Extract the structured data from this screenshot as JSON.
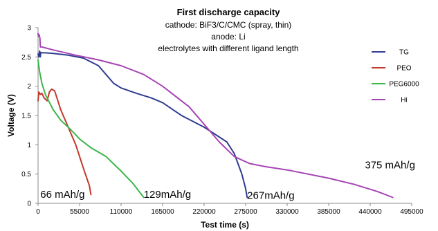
{
  "chart_data": {
    "type": "line",
    "title": "First discharge capacity",
    "subtitle_lines": [
      "cathode: BiF3/C/CMC (spray, thin)",
      "anode: Li",
      "electrolytes with different ligand length"
    ],
    "xlabel": "Test time (s)",
    "ylabel": "Voltage (V)",
    "xlim": [
      0,
      495000
    ],
    "ylim": [
      0,
      3
    ],
    "x_ticks": [
      0,
      55000,
      110000,
      165000,
      220000,
      275000,
      330000,
      385000,
      440000,
      495000
    ],
    "y_ticks": [
      0,
      0.5,
      1,
      1.5,
      2,
      2.5,
      3
    ],
    "x_tick_labels": [
      "0",
      "55000",
      "110000",
      "165000",
      "220000",
      "275000",
      "330000",
      "385000",
      "440000",
      "495000"
    ],
    "y_tick_labels": [
      "0",
      "0.5",
      "1",
      "1.5",
      "2",
      "2.5",
      "3"
    ],
    "legend_position": "right",
    "grid": false,
    "series": [
      {
        "name": "TG",
        "color": "#2e3c8f",
        "x": [
          0,
          1000,
          2000,
          3000,
          3500,
          5000,
          10000,
          20000,
          40000,
          60000,
          80000,
          90000,
          100000,
          110000,
          130000,
          150000,
          165000,
          190000,
          220000,
          250000,
          260000,
          270000,
          275000,
          277000
        ],
        "y": [
          2.55,
          2.5,
          2.6,
          2.5,
          2.58,
          2.57,
          2.57,
          2.56,
          2.53,
          2.48,
          2.35,
          2.2,
          2.05,
          1.97,
          1.88,
          1.8,
          1.72,
          1.5,
          1.3,
          1.05,
          0.85,
          0.5,
          0.25,
          0.1
        ]
      },
      {
        "name": "PEO",
        "color": "#c0392b",
        "x": [
          0,
          1000,
          3000,
          5000,
          8000,
          12000,
          15000,
          18000,
          22000,
          25000,
          30000,
          40000,
          50000,
          60000,
          68000,
          70000
        ],
        "y": [
          1.75,
          1.9,
          1.86,
          1.88,
          1.8,
          1.75,
          1.9,
          1.95,
          1.92,
          1.8,
          1.6,
          1.3,
          1.0,
          0.6,
          0.3,
          0.15
        ]
      },
      {
        "name": "PEG6000",
        "color": "#3cb64a",
        "x": [
          0,
          2000,
          5000,
          10000,
          20000,
          30000,
          40000,
          50000,
          55000,
          70000,
          90000,
          110000,
          125000,
          140000
        ],
        "y": [
          2.45,
          2.25,
          2.05,
          1.85,
          1.6,
          1.42,
          1.3,
          1.17,
          1.1,
          0.95,
          0.8,
          0.55,
          0.35,
          0.1
        ]
      },
      {
        "name": "Hi",
        "color": "#a644b5",
        "x": [
          0,
          500,
          1500,
          2500,
          3000,
          5000,
          20000,
          50000,
          80000,
          110000,
          140000,
          165000,
          200000,
          240000,
          260000,
          280000,
          300000,
          330000,
          385000,
          420000,
          450000,
          470000
        ],
        "y": [
          2.9,
          2.85,
          2.88,
          2.82,
          2.67,
          2.67,
          2.62,
          2.53,
          2.45,
          2.35,
          2.2,
          2.0,
          1.65,
          1.05,
          0.8,
          0.68,
          0.63,
          0.57,
          0.43,
          0.32,
          0.2,
          0.1
        ]
      }
    ],
    "annotations": [
      {
        "text": "66 mAh/g",
        "x": 3000,
        "y": 0.05
      },
      {
        "text": "129mAh/g",
        "x": 140000,
        "y": 0.05
      },
      {
        "text": "267mAh/g",
        "x": 277000,
        "y": 0.03
      },
      {
        "text": "375 mAh/g",
        "x": 433000,
        "y": 0.55
      }
    ]
  }
}
